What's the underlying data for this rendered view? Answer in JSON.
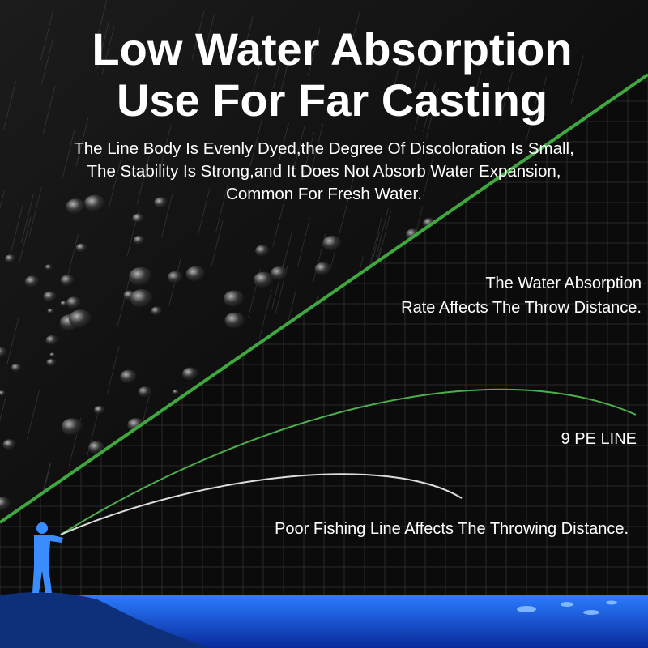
{
  "header": {
    "title_lines": [
      "Low Water Absorption",
      "Use For Far Casting"
    ],
    "description_lines": [
      "The Line Body Is Evenly Dyed,the Degree Of Discoloration Is Small,",
      "The Stability Is Strong,and It Does Not Absorb Water Expansion,",
      "Common For Fresh Water."
    ]
  },
  "annotations": {
    "absorption_lines": [
      "The Water Absorption",
      "Rate Affects The Throw Distance."
    ],
    "pe_line": "9 PE LINE",
    "poor_line": "Poor Fishing Line Affects The Throwing Distance."
  }
}
